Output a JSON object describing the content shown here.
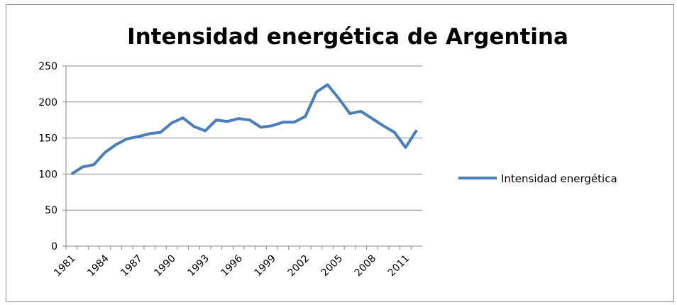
{
  "chart_data": {
    "type": "line",
    "title": "Intensidad energética de Argentina",
    "categories": [
      "1981",
      null,
      null,
      "1984",
      null,
      null,
      "1987",
      null,
      null,
      "1990",
      null,
      null,
      "1993",
      null,
      null,
      "1996",
      null,
      null,
      "1999",
      null,
      null,
      "2002",
      null,
      null,
      "2005",
      null,
      null,
      "2008",
      null,
      null,
      "2011",
      null
    ],
    "series": [
      {
        "name": "Intensidad energética",
        "color": "#4a7ebb",
        "values": [
          100,
          110,
          113,
          130,
          141,
          149,
          152,
          156,
          158,
          171,
          178,
          166,
          160,
          175,
          173,
          177,
          175,
          165,
          167,
          172,
          172,
          180,
          214,
          224,
          205,
          184,
          187,
          177,
          167,
          158,
          137,
          161
        ]
      }
    ],
    "ylim": [
      0,
      250
    ],
    "yticks": [
      0,
      50,
      100,
      150,
      200,
      250
    ],
    "grid": true,
    "legend": "right"
  }
}
